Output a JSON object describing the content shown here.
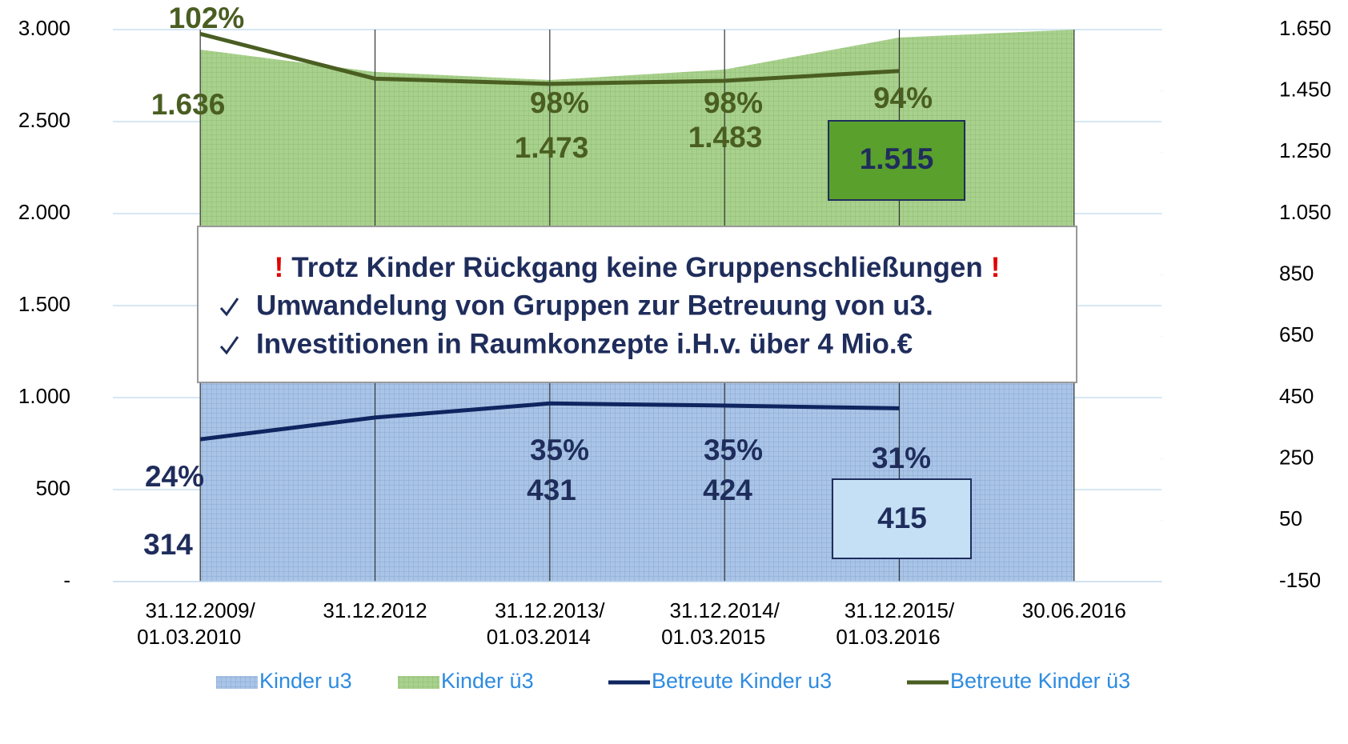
{
  "chart_data": {
    "type": "area",
    "categories": [
      "31.12.2009/\n01.03.2010",
      "31.12.2012",
      "31.12.2013/\n01.03.2014",
      "31.12.2014/\n01.03.2015",
      "31.12.2015/\n01.03.2016",
      "30.06.2016"
    ],
    "series": [
      {
        "name": "Kinder u3",
        "color": "#a9c4e6",
        "type": "area",
        "values": [
          1100,
          1100,
          1100,
          1100,
          1100,
          1100
        ]
      },
      {
        "name": "Kinder ü3",
        "color": "#a9d18e",
        "type": "area",
        "values": [
          1791,
          1670,
          1626,
          1683,
          1857,
          1900
        ]
      },
      {
        "name": "Betreute Kinder u3",
        "color": "#0f2560",
        "type": "line",
        "axis": "y2",
        "values": [
          314,
          385,
          431,
          424,
          415,
          null
        ],
        "value_labels": [
          "314",
          null,
          "431",
          "424",
          "415",
          null
        ],
        "percent_labels": [
          "24%",
          null,
          "35%",
          "35%",
          "31%",
          null
        ]
      },
      {
        "name": "Betreute Kinder ü3",
        "color": "#4a5e22",
        "type": "line",
        "axis": "y2",
        "values": [
          1636,
          1490,
          1473,
          1483,
          1515,
          null
        ],
        "value_labels": [
          "1.636",
          null,
          "1.473",
          "1.483",
          "1.515",
          null
        ],
        "percent_labels": [
          "102%",
          null,
          "98%",
          "98%",
          "94%",
          null
        ]
      }
    ],
    "ylim": [
      0,
      3000
    ],
    "yticks": [
      {
        "value": 0,
        "label": "-"
      },
      500,
      {
        "value": 1000,
        "label": "1.000"
      },
      {
        "value": 1500,
        "label": "1.500"
      },
      {
        "value": 2000,
        "label": "2.000"
      },
      {
        "value": 2500,
        "label": "2.500"
      },
      {
        "value": 3000,
        "label": "3.000"
      }
    ],
    "y2lim": [
      -150,
      1650
    ],
    "y2ticks": [
      -150,
      50,
      250,
      450,
      650,
      850,
      {
        "value": 1050,
        "label": "1.050"
      },
      {
        "value": 1250,
        "label": "1.250"
      },
      {
        "value": 1450,
        "label": "1.450"
      },
      {
        "value": 1650,
        "label": "1.650"
      }
    ],
    "grid": true,
    "legend": "bottom",
    "callout": {
      "marker": "!",
      "title": "Trotz Kinder Rückgang keine Gruppenschließungen",
      "items": [
        "Umwandelung von Gruppen zur Betreuung von u3.",
        "Investitionen in Raumkonzepte i.H.v. über 4 Mio.€"
      ]
    }
  }
}
